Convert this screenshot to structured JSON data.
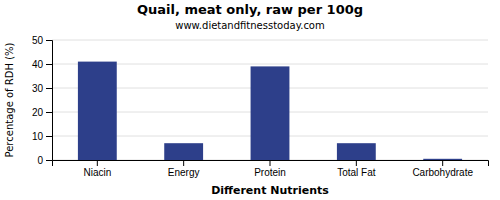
{
  "chart_data": {
    "type": "bar",
    "title": "Quail, meat only, raw per 100g",
    "subtitle": "www.dietandfitnesstoday.com",
    "xlabel": "Different Nutrients",
    "ylabel": "Percentage of RDH (%)",
    "categories": [
      "Niacin",
      "Energy",
      "Protein",
      "Total Fat",
      "Carbohydrate"
    ],
    "values": [
      41,
      7,
      39,
      7,
      0.5
    ],
    "color": "#2d3f8a",
    "ylim": [
      0,
      50
    ],
    "yticks": [
      0,
      10,
      20,
      30,
      40,
      50
    ],
    "grid": true
  }
}
